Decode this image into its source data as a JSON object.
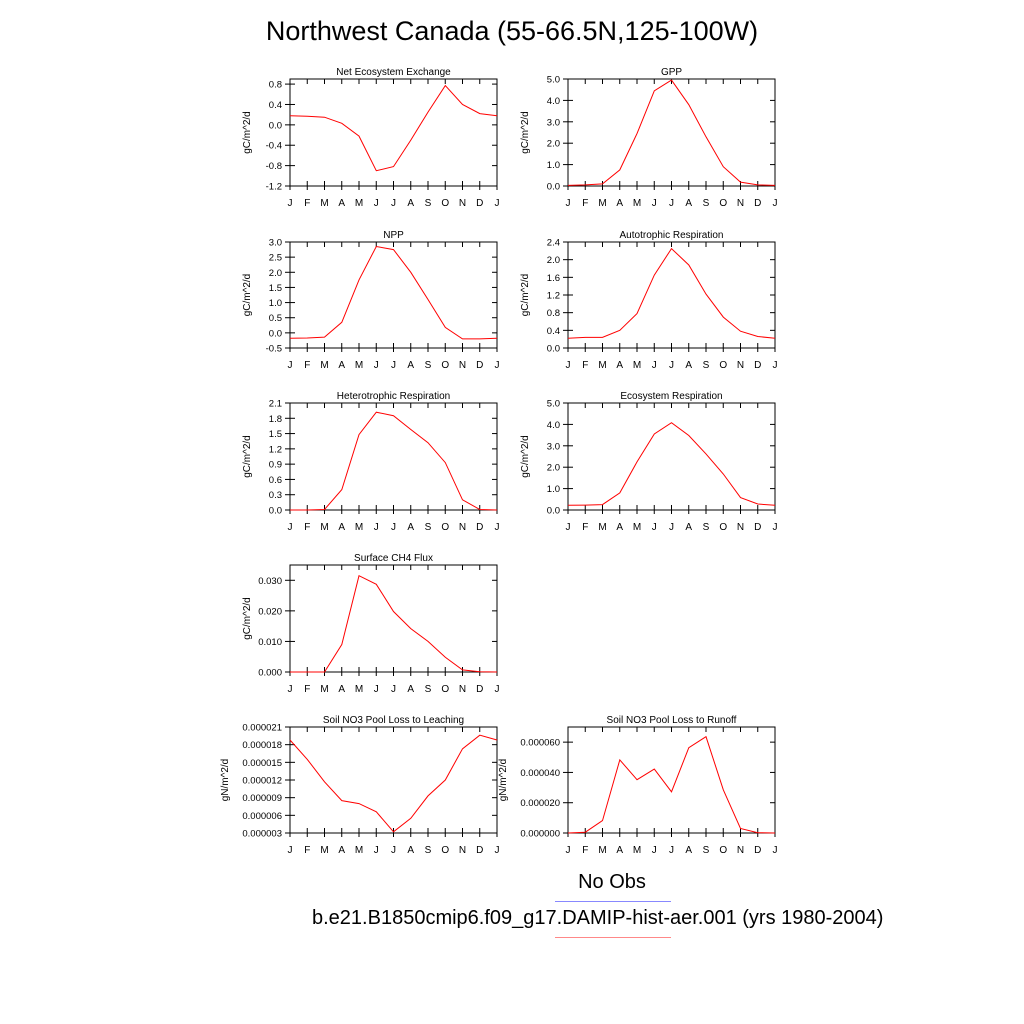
{
  "page": {
    "title": "Northwest Canada (55-66.5N,125-100W)",
    "legend": {
      "obs_label": "No Obs",
      "obs_color": "#8888ff",
      "case_label": "b.e21.B1850cmip6.f09_g17.DAMIP-hist-aer.001 (yrs 1980-2004)",
      "case_color": "#ff8888"
    }
  },
  "chart_data": [
    {
      "type": "line",
      "title": "Net Ecosystem Exchange",
      "ylabel": "gC/m^2/d",
      "x": [
        "J",
        "F",
        "M",
        "A",
        "M",
        "J",
        "J",
        "A",
        "S",
        "O",
        "N",
        "D",
        "J"
      ],
      "ylim": [
        -1.2,
        0.9
      ],
      "yticks": [
        "-1.2",
        "-0.8",
        "-0.4",
        "0.0",
        "0.4",
        "0.8"
      ],
      "series": [
        {
          "color": "#ff0000",
          "values": [
            0.18,
            0.17,
            0.15,
            0.03,
            -0.22,
            -0.9,
            -0.82,
            -0.3,
            0.25,
            0.77,
            0.4,
            0.22,
            0.18
          ]
        }
      ]
    },
    {
      "type": "line",
      "title": "GPP",
      "ylabel": "gC/m^2/d",
      "x": [
        "J",
        "F",
        "M",
        "A",
        "M",
        "J",
        "J",
        "A",
        "S",
        "O",
        "N",
        "D",
        "J"
      ],
      "ylim": [
        0,
        5.0
      ],
      "yticks": [
        "0.0",
        "1.0",
        "2.0",
        "3.0",
        "4.0",
        "5.0"
      ],
      "series": [
        {
          "color": "#ff0000",
          "values": [
            0.03,
            0.05,
            0.1,
            0.75,
            2.45,
            4.45,
            4.95,
            3.8,
            2.3,
            0.9,
            0.18,
            0.05,
            0.03
          ]
        }
      ]
    },
    {
      "type": "line",
      "title": "NPP",
      "ylabel": "gC/m^2/d",
      "x": [
        "J",
        "F",
        "M",
        "A",
        "M",
        "J",
        "J",
        "A",
        "S",
        "O",
        "N",
        "D",
        "J"
      ],
      "ylim": [
        -0.5,
        3.0
      ],
      "yticks": [
        "-0.5",
        "0.0",
        "0.5",
        "1.0",
        "1.5",
        "2.0",
        "2.5",
        "3.0"
      ],
      "series": [
        {
          "color": "#ff0000",
          "values": [
            -0.18,
            -0.17,
            -0.14,
            0.35,
            1.75,
            2.85,
            2.75,
            2.0,
            1.1,
            0.18,
            -0.2,
            -0.2,
            -0.18
          ]
        }
      ]
    },
    {
      "type": "line",
      "title": "Autotrophic Respiration",
      "ylabel": "gC/m^2/d",
      "x": [
        "J",
        "F",
        "M",
        "A",
        "M",
        "J",
        "J",
        "A",
        "S",
        "O",
        "N",
        "D",
        "J"
      ],
      "ylim": [
        0,
        2.4
      ],
      "yticks": [
        "0.0",
        "0.4",
        "0.8",
        "1.2",
        "1.6",
        "2.0",
        "2.4"
      ],
      "series": [
        {
          "color": "#ff0000",
          "values": [
            0.22,
            0.24,
            0.24,
            0.4,
            0.78,
            1.65,
            2.25,
            1.88,
            1.22,
            0.7,
            0.38,
            0.26,
            0.22
          ]
        }
      ]
    },
    {
      "type": "line",
      "title": "Heterotrophic Respiration",
      "ylabel": "gC/m^2/d",
      "x": [
        "J",
        "F",
        "M",
        "A",
        "M",
        "J",
        "J",
        "A",
        "S",
        "O",
        "N",
        "D",
        "J"
      ],
      "ylim": [
        0,
        2.1
      ],
      "yticks": [
        "0.0",
        "0.3",
        "0.6",
        "0.9",
        "1.2",
        "1.5",
        "1.8",
        "2.1"
      ],
      "series": [
        {
          "color": "#ff0000",
          "values": [
            0.0,
            0.0,
            0.01,
            0.4,
            1.48,
            1.92,
            1.85,
            1.58,
            1.32,
            0.93,
            0.2,
            0.01,
            0.0
          ]
        }
      ]
    },
    {
      "type": "line",
      "title": "Ecosystem Respiration",
      "ylabel": "gC/m^2/d",
      "x": [
        "J",
        "F",
        "M",
        "A",
        "M",
        "J",
        "J",
        "A",
        "S",
        "O",
        "N",
        "D",
        "J"
      ],
      "ylim": [
        0,
        5.0
      ],
      "yticks": [
        "0.0",
        "1.0",
        "2.0",
        "3.0",
        "4.0",
        "5.0"
      ],
      "series": [
        {
          "color": "#ff0000",
          "values": [
            0.22,
            0.23,
            0.25,
            0.8,
            2.25,
            3.55,
            4.08,
            3.48,
            2.62,
            1.68,
            0.58,
            0.28,
            0.22
          ]
        }
      ]
    },
    {
      "type": "line",
      "title": "Surface CH4 Flux",
      "ylabel": "gC/m^2/d",
      "x": [
        "J",
        "F",
        "M",
        "A",
        "M",
        "J",
        "J",
        "A",
        "S",
        "O",
        "N",
        "D",
        "J"
      ],
      "ylim": [
        0,
        0.035
      ],
      "yticks": [
        "0.000",
        "0.010",
        "0.020",
        "0.030"
      ],
      "series": [
        {
          "color": "#ff0000",
          "values": [
            0.0,
            0.0,
            0.0,
            0.009,
            0.0315,
            0.0287,
            0.0198,
            0.0142,
            0.01,
            0.0048,
            0.0007,
            0.0001,
            0.0
          ]
        }
      ]
    },
    {
      "type": "line",
      "title": "Soil NO3 Pool Loss to Leaching",
      "ylabel": "gN/m^2/d",
      "x": [
        "J",
        "F",
        "M",
        "A",
        "M",
        "J",
        "J",
        "A",
        "S",
        "O",
        "N",
        "D",
        "J"
      ],
      "ylim": [
        3e-06,
        2.1e-05
      ],
      "yticks": [
        "0.000003",
        "0.000006",
        "0.000009",
        "0.000012",
        "0.000015",
        "0.000018",
        "0.000021"
      ],
      "series": [
        {
          "color": "#ff0000",
          "values": [
            1.88e-05,
            1.55e-05,
            1.17e-05,
            8.5e-06,
            8e-06,
            6.6e-06,
            3.2e-06,
            5.5e-06,
            9.3e-06,
            1.2e-05,
            1.73e-05,
            1.96e-05,
            1.88e-05
          ]
        }
      ]
    },
    {
      "type": "line",
      "title": "Soil NO3 Pool Loss to Runoff",
      "ylabel": "gN/m^2/d",
      "x": [
        "J",
        "F",
        "M",
        "A",
        "M",
        "J",
        "J",
        "A",
        "S",
        "O",
        "N",
        "D",
        "J"
      ],
      "ylim": [
        0,
        7e-05
      ],
      "yticks": [
        "0.000000",
        "0.000020",
        "0.000040",
        "0.000060"
      ],
      "series": [
        {
          "color": "#ff0000",
          "values": [
            0.0,
            5e-07,
            8.2e-06,
            4.83e-05,
            3.52e-05,
            4.22e-05,
            2.72e-05,
            5.63e-05,
            6.36e-05,
            2.85e-05,
            3e-06,
            2e-07,
            0.0
          ]
        }
      ]
    }
  ]
}
